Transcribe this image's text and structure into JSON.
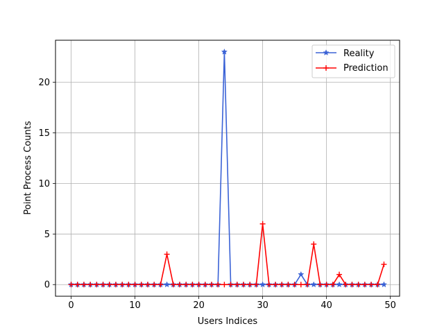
{
  "chart_data": {
    "type": "line",
    "title": "",
    "xlabel": "Users Indices",
    "ylabel": "Point Process Counts",
    "xlim": [
      -2.45,
      51.45
    ],
    "ylim": [
      -1.15,
      24.15
    ],
    "xticks": [
      0,
      10,
      20,
      30,
      40,
      50
    ],
    "yticks": [
      0,
      5,
      10,
      15,
      20
    ],
    "grid": true,
    "legend_position": "top-right",
    "x": [
      0,
      1,
      2,
      3,
      4,
      5,
      6,
      7,
      8,
      9,
      10,
      11,
      12,
      13,
      14,
      15,
      16,
      17,
      18,
      19,
      20,
      21,
      22,
      23,
      24,
      25,
      26,
      27,
      28,
      29,
      30,
      31,
      32,
      33,
      34,
      35,
      36,
      37,
      38,
      39,
      40,
      41,
      42,
      43,
      44,
      45,
      46,
      47,
      48,
      49
    ],
    "series": [
      {
        "name": "Reality",
        "color": "#3a62d6",
        "marker": "star",
        "values": [
          0,
          0,
          0,
          0,
          0,
          0,
          0,
          0,
          0,
          0,
          0,
          0,
          0,
          0,
          0,
          0,
          0,
          0,
          0,
          0,
          0,
          0,
          0,
          0,
          23,
          0,
          0,
          0,
          0,
          0,
          0,
          0,
          0,
          0,
          0,
          0,
          1,
          0,
          0,
          0,
          0,
          0,
          0,
          0,
          0,
          0,
          0,
          0,
          0,
          0
        ]
      },
      {
        "name": "Prediction",
        "color": "#ff0000",
        "marker": "plus",
        "values": [
          0,
          0,
          0,
          0,
          0,
          0,
          0,
          0,
          0,
          0,
          0,
          0,
          0,
          0,
          0,
          3,
          0,
          0,
          0,
          0,
          0,
          0,
          0,
          0,
          0,
          0,
          0,
          0,
          0,
          0,
          6,
          0,
          0,
          0,
          0,
          0,
          0,
          0,
          4,
          0,
          0,
          0,
          1,
          0,
          0,
          0,
          0,
          0,
          0,
          2
        ]
      }
    ]
  }
}
